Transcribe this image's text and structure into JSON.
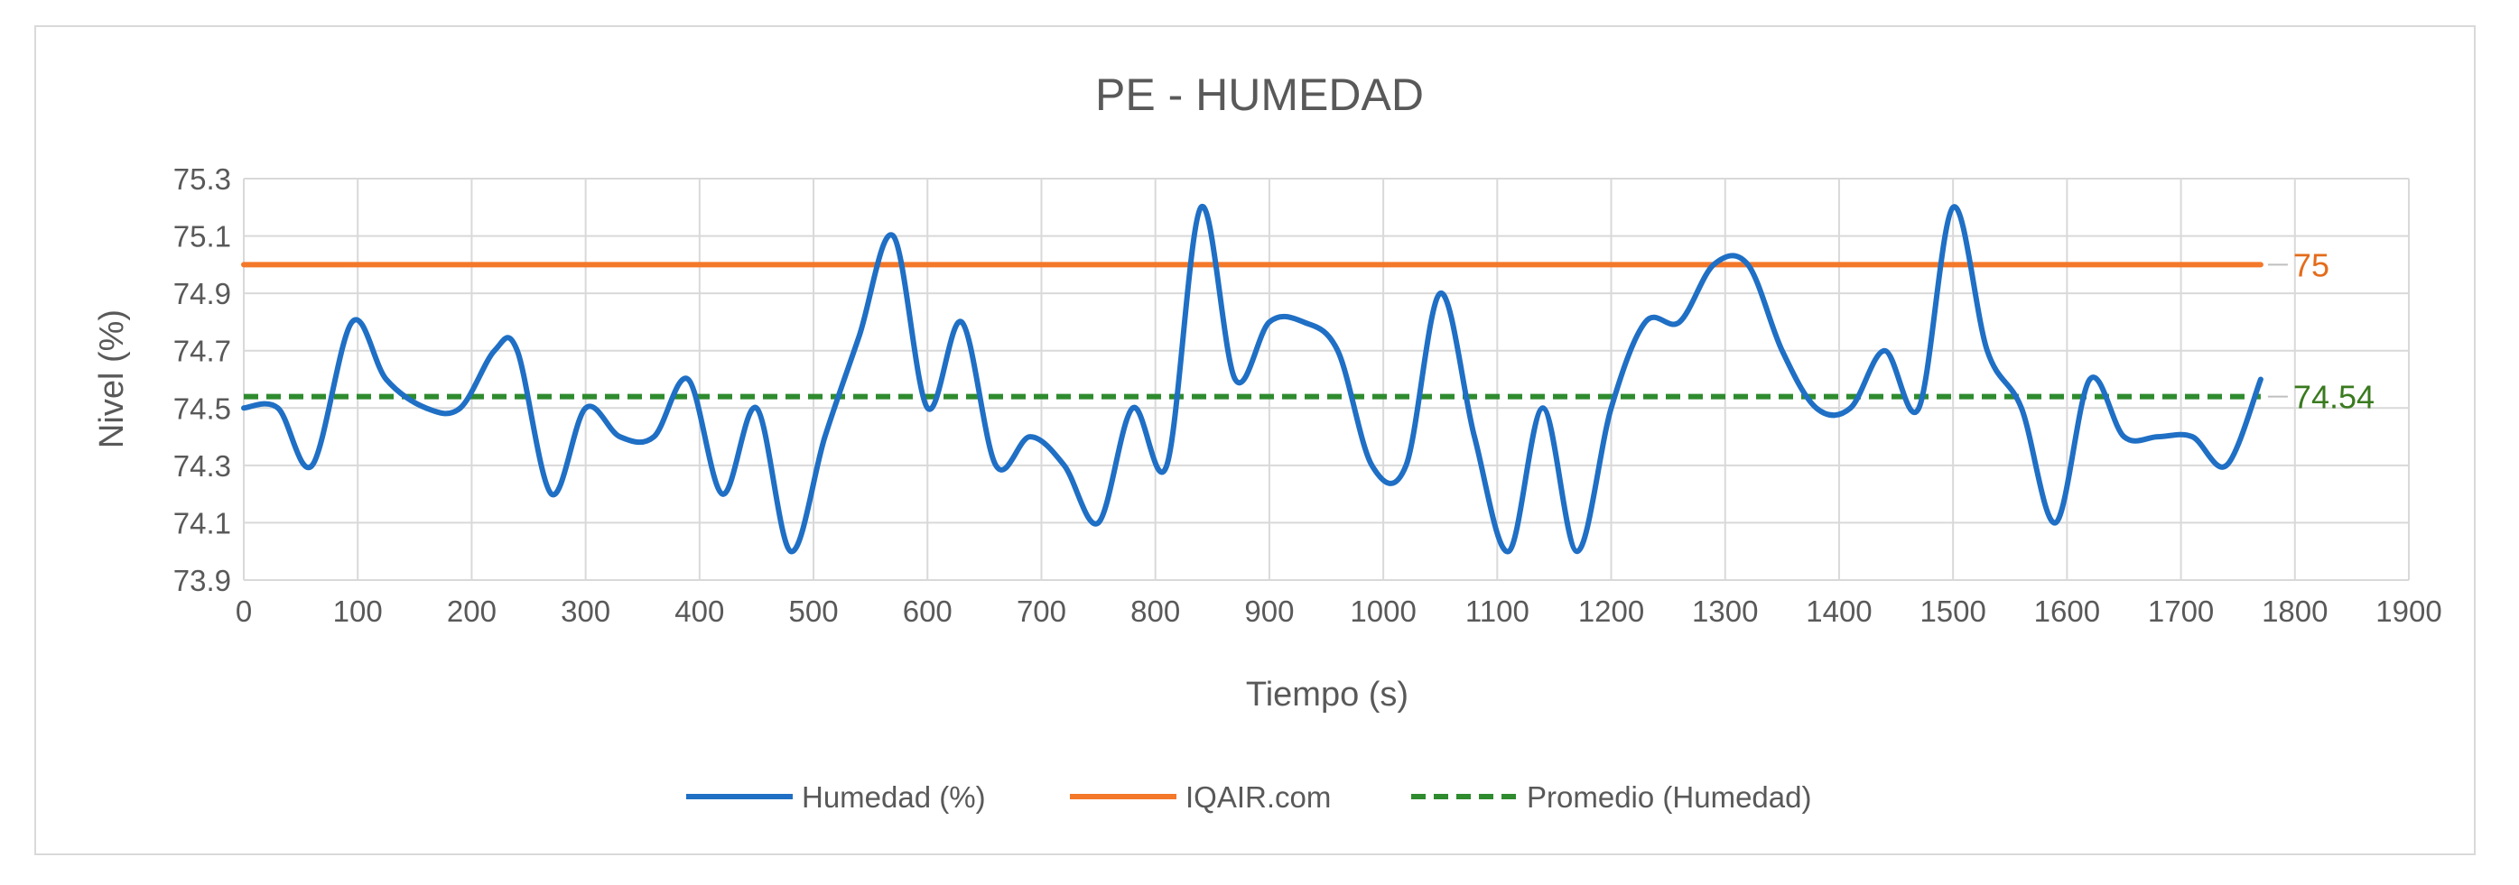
{
  "chart_data": {
    "type": "line",
    "title": "PE - HUMEDAD",
    "xlabel": "Tiempo (s)",
    "ylabel": "Nivel (%)",
    "xlim": [
      0,
      1900
    ],
    "ylim": [
      73.9,
      75.3
    ],
    "x_ticks": [
      0,
      100,
      200,
      300,
      400,
      500,
      600,
      700,
      800,
      900,
      1000,
      1100,
      1200,
      1300,
      1400,
      1500,
      1600,
      1700,
      1800,
      1900
    ],
    "y_ticks": [
      73.9,
      74.1,
      74.3,
      74.5,
      74.7,
      74.9,
      75.1,
      75.3
    ],
    "grid": true,
    "legend_position": "bottom",
    "series": [
      {
        "name": "Humedad (%)",
        "color": "#1f6fc5",
        "style": "solid",
        "x": [
          0,
          30,
          60,
          95,
          125,
          160,
          190,
          220,
          240,
          270,
          300,
          330,
          360,
          390,
          420,
          450,
          480,
          510,
          540,
          570,
          600,
          630,
          660,
          690,
          720,
          750,
          780,
          810,
          840,
          870,
          900,
          930,
          960,
          990,
          1020,
          1050,
          1080,
          1110,
          1140,
          1170,
          1200,
          1230,
          1260,
          1290,
          1320,
          1350,
          1380,
          1410,
          1440,
          1470,
          1500,
          1530,
          1560,
          1590,
          1620,
          1650,
          1680,
          1710,
          1740,
          1770
        ],
        "values": [
          74.5,
          74.5,
          74.3,
          74.8,
          74.6,
          74.5,
          74.5,
          74.7,
          74.7,
          74.2,
          74.5,
          74.4,
          74.4,
          74.6,
          74.2,
          74.5,
          74.0,
          74.4,
          74.75,
          75.1,
          74.5,
          74.8,
          74.3,
          74.4,
          74.3,
          74.1,
          74.5,
          74.3,
          75.2,
          74.6,
          74.8,
          74.8,
          74.7,
          74.3,
          74.3,
          74.9,
          74.4,
          74.0,
          74.5,
          74.0,
          74.5,
          74.8,
          74.8,
          75.0,
          75.0,
          74.7,
          74.5,
          74.5,
          74.7,
          74.5,
          75.2,
          74.7,
          74.5,
          74.1,
          74.6,
          74.4,
          74.4,
          74.4,
          74.3,
          74.6
        ]
      },
      {
        "name": "IQAIR.com",
        "color": "#f4782a",
        "style": "solid",
        "x": [
          0,
          1770
        ],
        "values": [
          75,
          75
        ],
        "end_label": "75",
        "end_label_color": "#e46c1b"
      },
      {
        "name": "Promedio (Humedad)",
        "color": "#2e8b2e",
        "style": "dashed",
        "x": [
          0,
          1770
        ],
        "values": [
          74.54,
          74.54
        ],
        "end_label": "74.54",
        "end_label_color": "#3a7a1f"
      }
    ]
  }
}
